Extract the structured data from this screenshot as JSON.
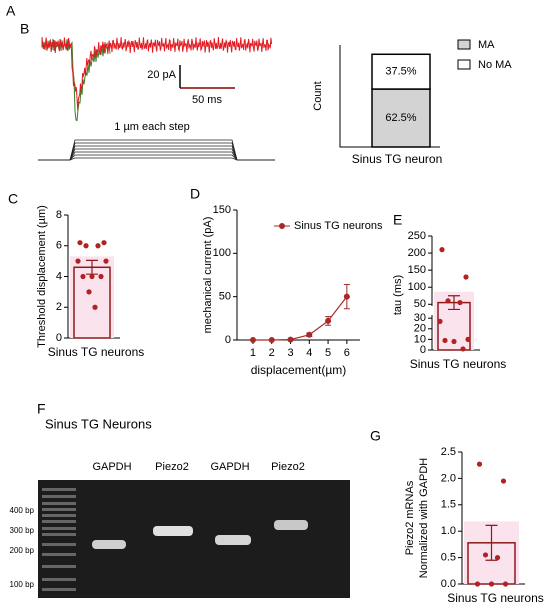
{
  "panel_a": {
    "label": "A",
    "scale_current": "20 pA",
    "scale_time": "50 ms",
    "stimulus": "1 µm each step"
  },
  "panel_f": {
    "label": "F",
    "title": "Sinus TG Neurons",
    "lanes": [
      "GAPDH",
      "Piezo2",
      "GAPDH",
      "Piezo2"
    ],
    "ladder": [
      "400 bp",
      "300 bp",
      "200 bp",
      "100 bp"
    ]
  },
  "chart_data": [
    {
      "label": "B",
      "type": "stacked_bar",
      "ylabel": "Count",
      "categories": [
        "Sinus TG neuron"
      ],
      "series": [
        {
          "name": "MA",
          "color": "#d3d3d3",
          "values": [
            62.5
          ],
          "value_labels": [
            "62.5%"
          ]
        },
        {
          "name": "No MA",
          "color": "#ffffff",
          "values": [
            37.5
          ],
          "value_labels": [
            "37.5%"
          ]
        }
      ],
      "ylim": [
        0,
        110
      ]
    },
    {
      "label": "C",
      "type": "bar_scatter",
      "ylabel": "Threshold displacement (µm)",
      "categories": [
        "Sinus TG neurons"
      ],
      "values": [
        4.6
      ],
      "errors": [
        0.45
      ],
      "points": [
        [
          6.2,
          6.2,
          6,
          6,
          5,
          5,
          4,
          4,
          4,
          3,
          2
        ]
      ],
      "color": "#8b1a1a",
      "ylim": [
        0,
        8
      ],
      "yticks": [
        0,
        2,
        4,
        6,
        8
      ]
    },
    {
      "label": "D",
      "type": "line",
      "xlabel": "displacement(µm)",
      "ylabel": "mechanical current (pA)",
      "x": [
        1,
        2,
        3,
        4,
        5,
        6
      ],
      "series": [
        {
          "name": "Sinus TG neurons",
          "color": "#a52a2a",
          "values": [
            0,
            0,
            0.5,
            6,
            22,
            50
          ],
          "errors": [
            0,
            0,
            0.5,
            2,
            5,
            14
          ]
        }
      ],
      "xlim": [
        0.15,
        6.7
      ],
      "xticks": [
        1,
        2,
        3,
        4,
        5,
        6
      ],
      "ylim": [
        0,
        150
      ],
      "yticks": [
        0,
        50,
        100,
        150
      ]
    },
    {
      "label": "E",
      "type": "broken_bar_scatter",
      "ylabel": "tau (ms)",
      "categories": [
        "Sinus TG neurons"
      ],
      "values": [
        55
      ],
      "errors": [
        20
      ],
      "points": [
        [
          210,
          130,
          60,
          55,
          27,
          10,
          8,
          9,
          1
        ]
      ],
      "color": "#8b1a1a",
      "segments": [
        {
          "ylim": [
            0,
            33
          ],
          "yticks": [
            0,
            10,
            20,
            30
          ]
        },
        {
          "ylim": [
            45,
            250
          ],
          "yticks": [
            50,
            100,
            150,
            200,
            250
          ]
        }
      ]
    },
    {
      "label": "G",
      "type": "bar_scatter",
      "ylabel": [
        "Piezo2 mRNAs",
        "Normalized with GAPDH"
      ],
      "categories": [
        "Sinus TG neurons"
      ],
      "values": [
        0.78
      ],
      "errors": [
        0.33
      ],
      "points": [
        [
          2.27,
          1.95,
          0.55,
          0.5,
          0,
          0,
          0
        ]
      ],
      "color": "#8b1a1a",
      "ylim": [
        0,
        2.5
      ],
      "yticks": [
        {
          "value": 0,
          "label": "0.0"
        },
        0.5,
        {
          "value": 1,
          "label": "1.0"
        },
        1.5,
        {
          "value": 2,
          "label": "2.0"
        },
        2.5
      ]
    }
  ]
}
